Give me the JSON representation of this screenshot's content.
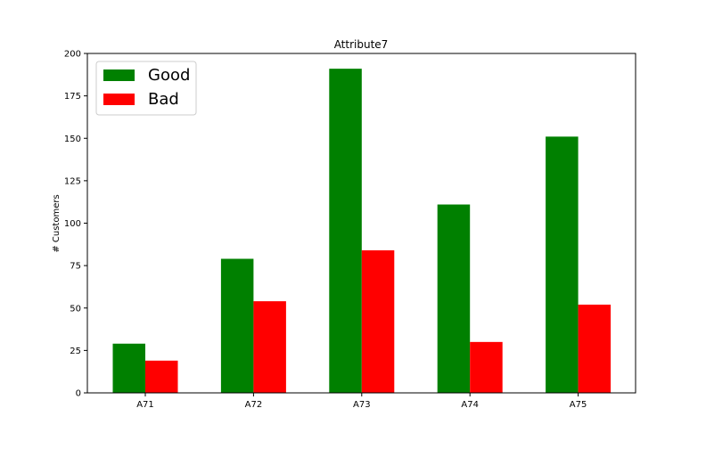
{
  "chart_data": {
    "type": "bar",
    "title": "Attribute7",
    "xlabel": "",
    "ylabel": "# Customers",
    "categories": [
      "A71",
      "A72",
      "A73",
      "A74",
      "A75"
    ],
    "series": [
      {
        "name": "Good",
        "color": "#008000",
        "values": [
          29,
          79,
          191,
          111,
          151
        ]
      },
      {
        "name": "Bad",
        "color": "#ff0000",
        "values": [
          19,
          54,
          84,
          30,
          52
        ]
      }
    ],
    "ylim": [
      0,
      200
    ],
    "yticks": [
      0,
      25,
      50,
      75,
      100,
      125,
      150,
      175,
      200
    ],
    "grid": false,
    "legend_position": "top-left"
  }
}
